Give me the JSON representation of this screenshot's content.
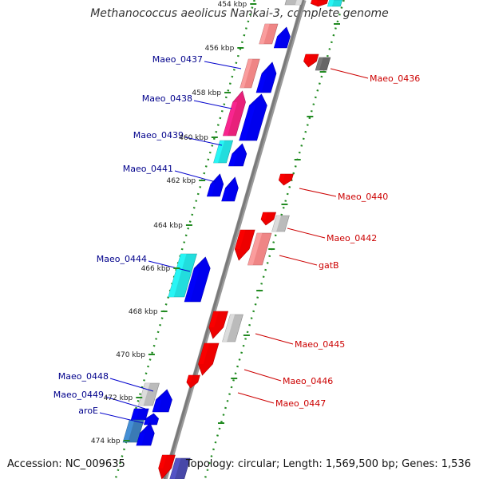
{
  "title": "Methanococcus aeolicus Nankai-3, complete genome",
  "accession": "Accession: NC_009635",
  "summary": "Topology: circular; Length: 1,569,500 bp; Genes: 1,536",
  "colors": {
    "backbone": "#7a7a7a",
    "track_line": "#228b22",
    "forward_label": "#00008b",
    "reverse_label": "#cc0000",
    "blue": "#0000ee",
    "red": "#ee0000",
    "pink": "#e8207a",
    "salmon": "#ef8585",
    "cyan": "#22dddd",
    "gray": "#bbbbbb",
    "steel": "#3a7ab5",
    "navy": "#4848a8"
  },
  "kbp_ticks": [
    "454 kbp",
    "456 kbp",
    "458 kbp",
    "460 kbp",
    "462 kbp",
    "464 kbp",
    "466 kbp",
    "468 kbp",
    "470 kbp",
    "472 kbp",
    "474 kbp"
  ],
  "forward_genes": [
    {
      "label": "Maeo_0437"
    },
    {
      "label": "Maeo_0438"
    },
    {
      "label": "Maeo_0439"
    },
    {
      "label": "Maeo_0441"
    },
    {
      "label": "Maeo_0444"
    },
    {
      "label": "Maeo_0448"
    },
    {
      "label": "Maeo_0449"
    },
    {
      "label": "aroE"
    }
  ],
  "reverse_genes": [
    {
      "label": "Maeo_0436"
    },
    {
      "label": "Maeo_0440"
    },
    {
      "label": "Maeo_0442"
    },
    {
      "label": "gatB"
    },
    {
      "label": "Maeo_0445"
    },
    {
      "label": "Maeo_0446"
    },
    {
      "label": "Maeo_0447"
    }
  ]
}
